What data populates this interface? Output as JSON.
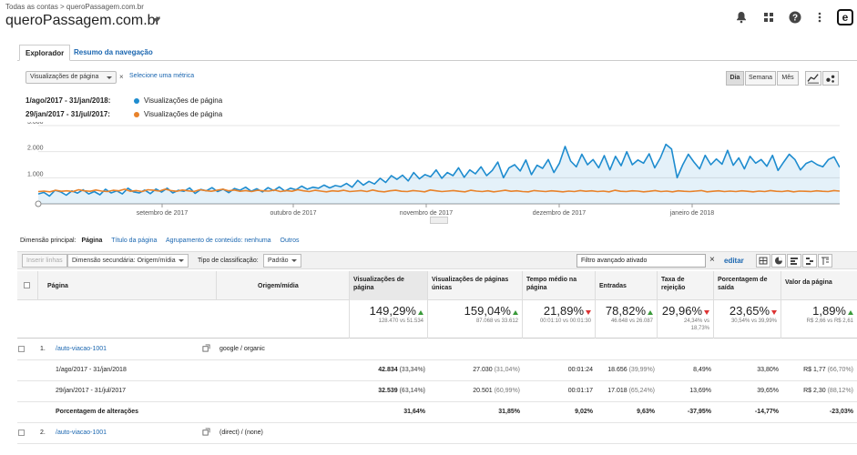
{
  "header": {
    "breadcrumb": "Todas as contas > queroPassagem.com.br",
    "account": "queroPassagem.com.br"
  },
  "tabs": [
    {
      "label": "Explorador"
    },
    {
      "label": "Resumo da navegação"
    }
  ],
  "metric": {
    "selected": "Visualizações de página",
    "remove": "×",
    "add_link": "Selecione uma métrica"
  },
  "time_buttons": [
    "Dia",
    "Semana",
    "Mês"
  ],
  "legend": [
    {
      "range": "1/ago/2017 - 31/jan/2018:",
      "name": "Visualizações de página",
      "color": "#1e8ccf"
    },
    {
      "range": "29/jan/2017 - 31/jul/2017:",
      "name": "Visualizações de página",
      "color": "#e8822a"
    }
  ],
  "chart_data": {
    "type": "line",
    "y_ticks": [
      "3.000",
      "2.000",
      "1.000"
    ],
    "ylim": [
      0,
      3000
    ],
    "x_ticks": [
      "setembro de 2017",
      "outubro de 2017",
      "novembro de 2017",
      "dezembro de 2017",
      "janeiro de 2018"
    ],
    "series": [
      {
        "name": "1/ago/2017 - 31/jan/2018",
        "color": "#1e8ccf",
        "values": [
          380,
          440,
          300,
          520,
          460,
          330,
          500,
          410,
          540,
          380,
          470,
          350,
          560,
          420,
          500,
          380,
          600,
          460,
          420,
          530,
          390,
          570,
          450,
          600,
          420,
          520,
          480,
          610,
          400,
          550,
          500,
          620,
          470,
          560,
          430,
          590,
          520,
          640,
          480,
          580,
          460,
          620,
          510,
          650,
          490,
          600,
          540,
          680,
          560,
          640,
          600,
          720,
          610,
          700,
          660,
          780,
          640,
          900,
          720,
          860,
          760,
          980,
          820,
          1080,
          940,
          1100,
          880,
          1200,
          960,
          1120,
          1040,
          1300,
          980,
          1200,
          1080,
          1380,
          1020,
          1300,
          1150,
          1420,
          1080,
          1280,
          1600,
          1000,
          1380,
          1500,
          1260,
          1680,
          1120,
          1480,
          1360,
          1700,
          1200,
          1560,
          2200,
          1640,
          1420,
          1900,
          1500,
          1700,
          1380,
          1850,
          1300,
          1820,
          1460,
          2000,
          1500,
          1680,
          1560,
          1920,
          1380,
          1760,
          2280,
          2100,
          1000,
          1500,
          1900,
          1600,
          1340,
          1860,
          1500,
          1720,
          1520,
          2050,
          1480,
          1760,
          1340,
          1820,
          1560,
          1700,
          1440,
          1860,
          1280,
          1600,
          1900,
          1700,
          1300,
          1550,
          1640,
          1500,
          1420,
          1700,
          1800,
          1400
        ]
      },
      {
        "name": "29/jan/2017 - 31/jul/2017",
        "color": "#e8822a",
        "values": [
          470,
          490,
          460,
          520,
          480,
          500,
          470,
          540,
          500,
          480,
          530,
          490,
          470,
          520,
          500,
          560,
          480,
          510,
          470,
          540,
          520,
          490,
          560,
          510,
          480,
          530,
          500,
          470,
          540,
          510,
          480,
          520,
          560,
          500,
          530,
          480,
          510,
          470,
          520,
          500,
          490,
          530,
          470,
          510,
          480,
          540,
          500,
          470,
          520,
          490,
          460,
          500,
          480,
          520,
          470,
          490,
          510,
          470,
          530,
          480,
          460,
          500,
          520,
          480,
          470,
          510,
          490,
          460,
          530,
          500,
          470,
          490,
          510,
          480,
          460,
          520,
          490,
          470,
          500,
          460,
          490,
          520,
          480,
          500,
          470,
          460,
          510,
          490,
          470,
          500,
          480,
          460,
          490,
          470,
          510,
          480,
          500,
          470,
          490,
          460,
          520,
          480,
          470,
          500,
          490,
          460,
          480,
          510,
          470,
          490,
          460,
          500,
          480,
          470,
          490,
          510,
          460,
          480,
          500,
          470,
          490,
          470,
          500,
          480,
          460,
          490,
          470,
          510,
          480,
          470,
          500,
          460,
          490,
          480,
          470,
          500,
          480,
          470,
          510,
          490
        ]
      }
    ]
  },
  "dimension": {
    "label": "Dimensão principal:",
    "active": "Página",
    "options": [
      "Título da página",
      "Agrupamento de conteúdo: nenhuma",
      "Outros"
    ]
  },
  "toolbar": {
    "insert_rows": "Inserir linhas",
    "secondary_dim": "Dimensão secundária: Origem/mídia",
    "sort_label": "Tipo de classificação:",
    "sort_value": "Padrão",
    "filter": "Filtro avançado ativado",
    "filter_clear": "×",
    "edit": "editar"
  },
  "table": {
    "headers": {
      "page": "Página",
      "source": "Origem/mídia",
      "pageviews": "Visualizações de página",
      "unique": "Visualizações de páginas únicas",
      "time": "Tempo médio na página",
      "entries": "Entradas",
      "bounce": "Taxa de rejeição",
      "exit": "Porcentagem de saída",
      "value": "Valor da página"
    },
    "summary": {
      "pageviews": {
        "pct": "149,29%",
        "sub": "128.470 vs 51.534"
      },
      "unique": {
        "pct": "159,04%",
        "sub": "87.068 vs 33.612"
      },
      "time": {
        "pct": "21,89%",
        "sub": "00:01:10 vs 00:01:30"
      },
      "entries": {
        "pct": "78,82%",
        "sub": "46.648 vs 26.087"
      },
      "bounce": {
        "pct": "29,96%",
        "sub": "24,34% vs",
        "sub2": "18,73%"
      },
      "exit": {
        "pct": "23,65%",
        "sub": "30,54% vs 39,99%"
      },
      "value": {
        "pct": "1,89%",
        "sub": "R$ 2,66 vs R$ 2,61"
      }
    },
    "row1": {
      "index": "1.",
      "page": "/auto-viacao-1001",
      "source": "google / organic"
    },
    "row1a": {
      "range": "1/ago/2017 - 31/jan/2018",
      "pageviews": "42.834",
      "pageviews_pct": "(33,34%)",
      "unique": "27.030",
      "unique_pct": "(31,04%)",
      "time": "00:01:24",
      "entries": "18.656",
      "entries_pct": "(39,99%)",
      "bounce": "8,49%",
      "exit": "33,80%",
      "value": "R$ 1,77",
      "value_pct": "(66,70%)"
    },
    "row1b": {
      "range": "29/jan/2017 - 31/jul/2017",
      "pageviews": "32.539",
      "pageviews_pct": "(63,14%)",
      "unique": "20.501",
      "unique_pct": "(60,99%)",
      "time": "00:01:17",
      "entries": "17.018",
      "entries_pct": "(65,24%)",
      "bounce": "13,69%",
      "exit": "39,65%",
      "value": "R$ 2,30",
      "value_pct": "(88,12%)"
    },
    "row1c": {
      "label": "Porcentagem de alterações",
      "pageviews": "31,64%",
      "unique": "31,85%",
      "time": "9,02%",
      "entries": "9,63%",
      "bounce": "-37,95%",
      "exit": "-14,77%",
      "value": "-23,03%"
    },
    "row2": {
      "index": "2.",
      "page": "/auto-viacao-1001",
      "source": "(direct) / (none)"
    }
  }
}
